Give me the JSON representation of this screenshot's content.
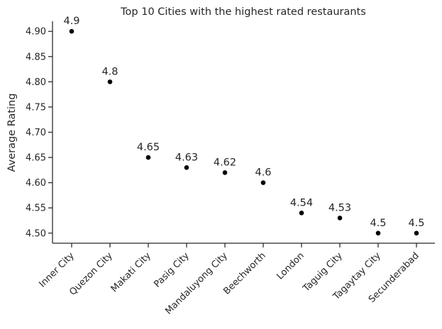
{
  "chart_data": {
    "type": "scatter",
    "title": "Top 10 Cities with the highest rated restaurants",
    "xlabel": "",
    "ylabel": "Average Rating",
    "categories": [
      "Inner City",
      "Quezon City",
      "Makati City",
      "Pasig City",
      "Mandaluyong City",
      "Beechworth",
      "London",
      "Taguig City",
      "Tagaytay City",
      "Secunderabad"
    ],
    "values": [
      4.9,
      4.8,
      4.65,
      4.63,
      4.62,
      4.6,
      4.54,
      4.53,
      4.5,
      4.5
    ],
    "data_labels": [
      "4.9",
      "4.8",
      "4.65",
      "4.63",
      "4.62",
      "4.6",
      "4.54",
      "4.53",
      "4.5",
      "4.5"
    ],
    "yticks": [
      "4.50",
      "4.55",
      "4.60",
      "4.65",
      "4.70",
      "4.75",
      "4.80",
      "4.85",
      "4.90"
    ],
    "ylim": [
      4.48,
      4.92
    ],
    "grid": false,
    "legend": "none",
    "marker_color": "#000000"
  }
}
